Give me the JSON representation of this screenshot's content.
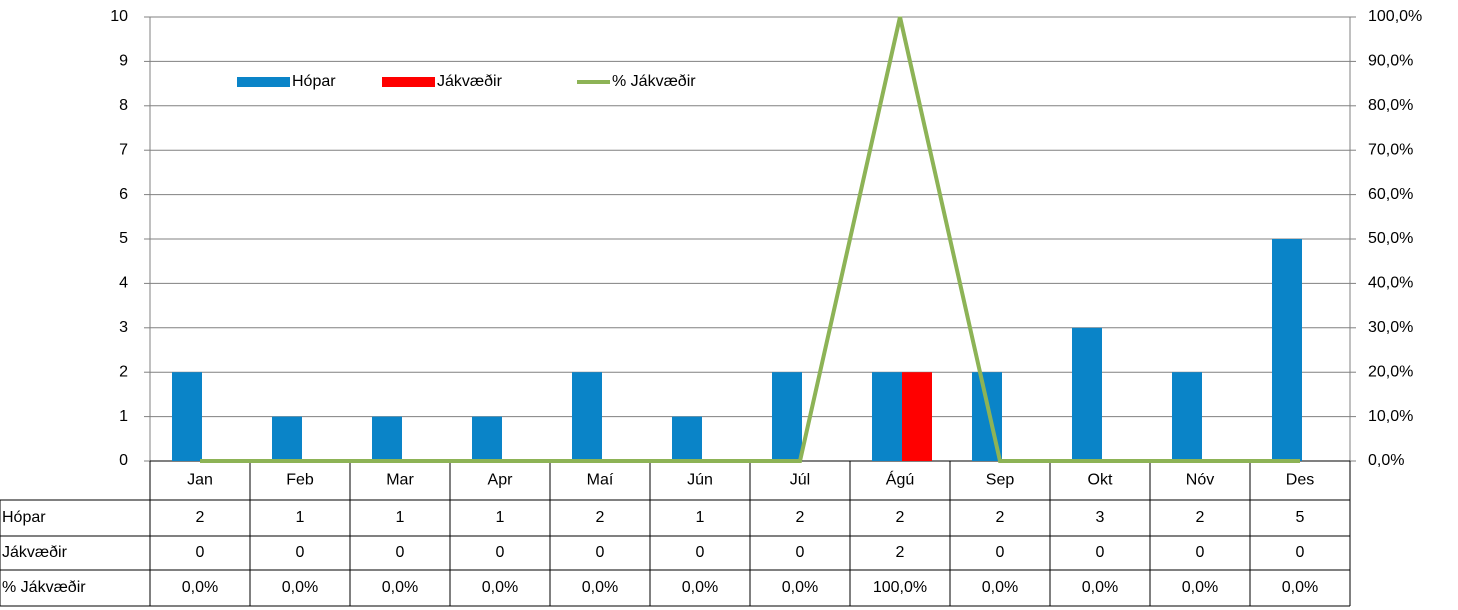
{
  "chart_data": {
    "type": "bar_line",
    "categories": [
      "Jan",
      "Feb",
      "Mar",
      "Apr",
      "Maí",
      "Jún",
      "Júl",
      "Ágú",
      "Sep",
      "Okt",
      "Nóv",
      "Des"
    ],
    "series": [
      {
        "name": "Hópar",
        "color": "#0a84c8",
        "type": "bar",
        "values": [
          2,
          1,
          1,
          1,
          2,
          1,
          2,
          2,
          2,
          3,
          2,
          5
        ]
      },
      {
        "name": "Jákvæðir",
        "color": "#ff0000",
        "type": "bar",
        "values": [
          0,
          0,
          0,
          0,
          0,
          0,
          0,
          2,
          0,
          0,
          0,
          0
        ]
      },
      {
        "name": "% Jákvæðir",
        "color": "#8db356",
        "type": "line",
        "axis": "y2",
        "values": [
          0,
          0,
          0,
          0,
          0,
          0,
          0,
          100,
          0,
          0,
          0,
          0
        ],
        "value_labels": [
          "0,0%",
          "0,0%",
          "0,0%",
          "0,0%",
          "0,0%",
          "0,0%",
          "0,0%",
          "100,0%",
          "0,0%",
          "0,0%",
          "0,0%",
          "0,0%"
        ]
      }
    ],
    "ylim": [
      0,
      10
    ],
    "yticks": [
      0,
      1,
      2,
      3,
      4,
      5,
      6,
      7,
      8,
      9,
      10
    ],
    "y2lim": [
      0,
      100
    ],
    "y2ticks": [
      {
        "value": 0,
        "label": "0,0%"
      },
      {
        "value": 10,
        "label": "10,0%"
      },
      {
        "value": 20,
        "label": "20,0%"
      },
      {
        "value": 30,
        "label": "30,0%"
      },
      {
        "value": 40,
        "label": "40,0%"
      },
      {
        "value": 50,
        "label": "50,0%"
      },
      {
        "value": 60,
        "label": "60,0%"
      },
      {
        "value": 70,
        "label": "70,0%"
      },
      {
        "value": 80,
        "label": "80,0%"
      },
      {
        "value": 90,
        "label": "90,0%"
      },
      {
        "value": 100,
        "label": "100,0%"
      }
    ],
    "grid": true,
    "legend": "top-left"
  }
}
